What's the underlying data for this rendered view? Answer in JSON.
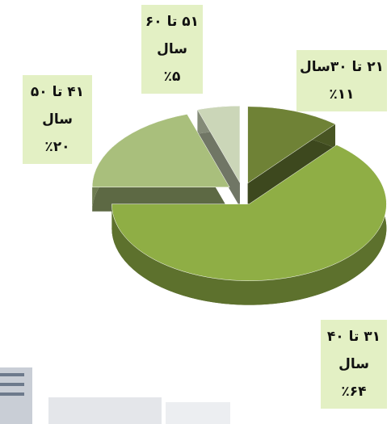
{
  "chart_data": {
    "type": "pie",
    "categories": [
      "۲۱ تا ۳۰سال",
      "۳۱ تا ۴۰ سال",
      "۴۱ تا ۵۰ سال",
      "۵۱ تا ۶۰ سال"
    ],
    "values": [
      11,
      64,
      20,
      5
    ],
    "value_labels": [
      "٪۱۱",
      "٪۶۴",
      "٪۲۰",
      "٪۵"
    ],
    "colors": [
      "#6f8236",
      "#8fae45",
      "#a9bf7c",
      "#cbd6b8"
    ]
  }
}
